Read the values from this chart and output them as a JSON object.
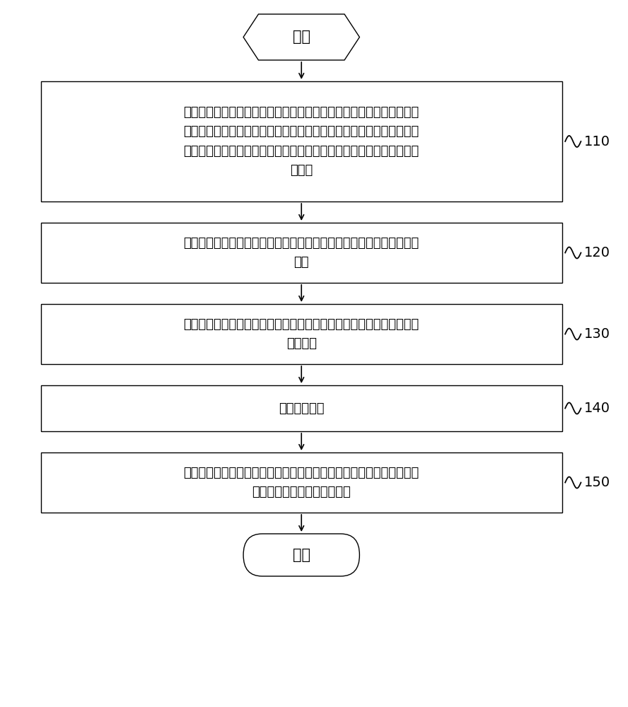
{
  "bg_color": "#ffffff",
  "border_color": "#000000",
  "text_color": "#000000",
  "start_label": "开始",
  "end_label": "结束",
  "box1_text": "按照各层窗口的显示优先级由高到低的顺序显示各层窗口中包括的缩略\n图；其中，一个缩略图对应一个界面，一个层级包括一个窗口，一个窗\n口包括至少一个缩略图，一个窗口用于显示包括的其中一个缩略图对应\n的界面",
  "box2_text": "接收对第一窗口中的第一缩略图的第一输入；其中，各层窗口包括第一\n窗口",
  "box3_text": "响应于第一输入，移动第一缩略图至第二窗口中；其中，各层窗口包括\n第二窗口",
  "box4_text": "接收第二输入",
  "box5_text": "响应于第二输入，在第二窗口中显示第一缩略图对应的第一界面；其中\n，第一界面为应用程序的界面",
  "step_labels": [
    "110",
    "120",
    "130",
    "140",
    "150"
  ],
  "font_size": 13,
  "step_font_size": 14,
  "title_font_size": 15,
  "fig_width": 8.88,
  "fig_height": 10.0,
  "dpi": 100
}
